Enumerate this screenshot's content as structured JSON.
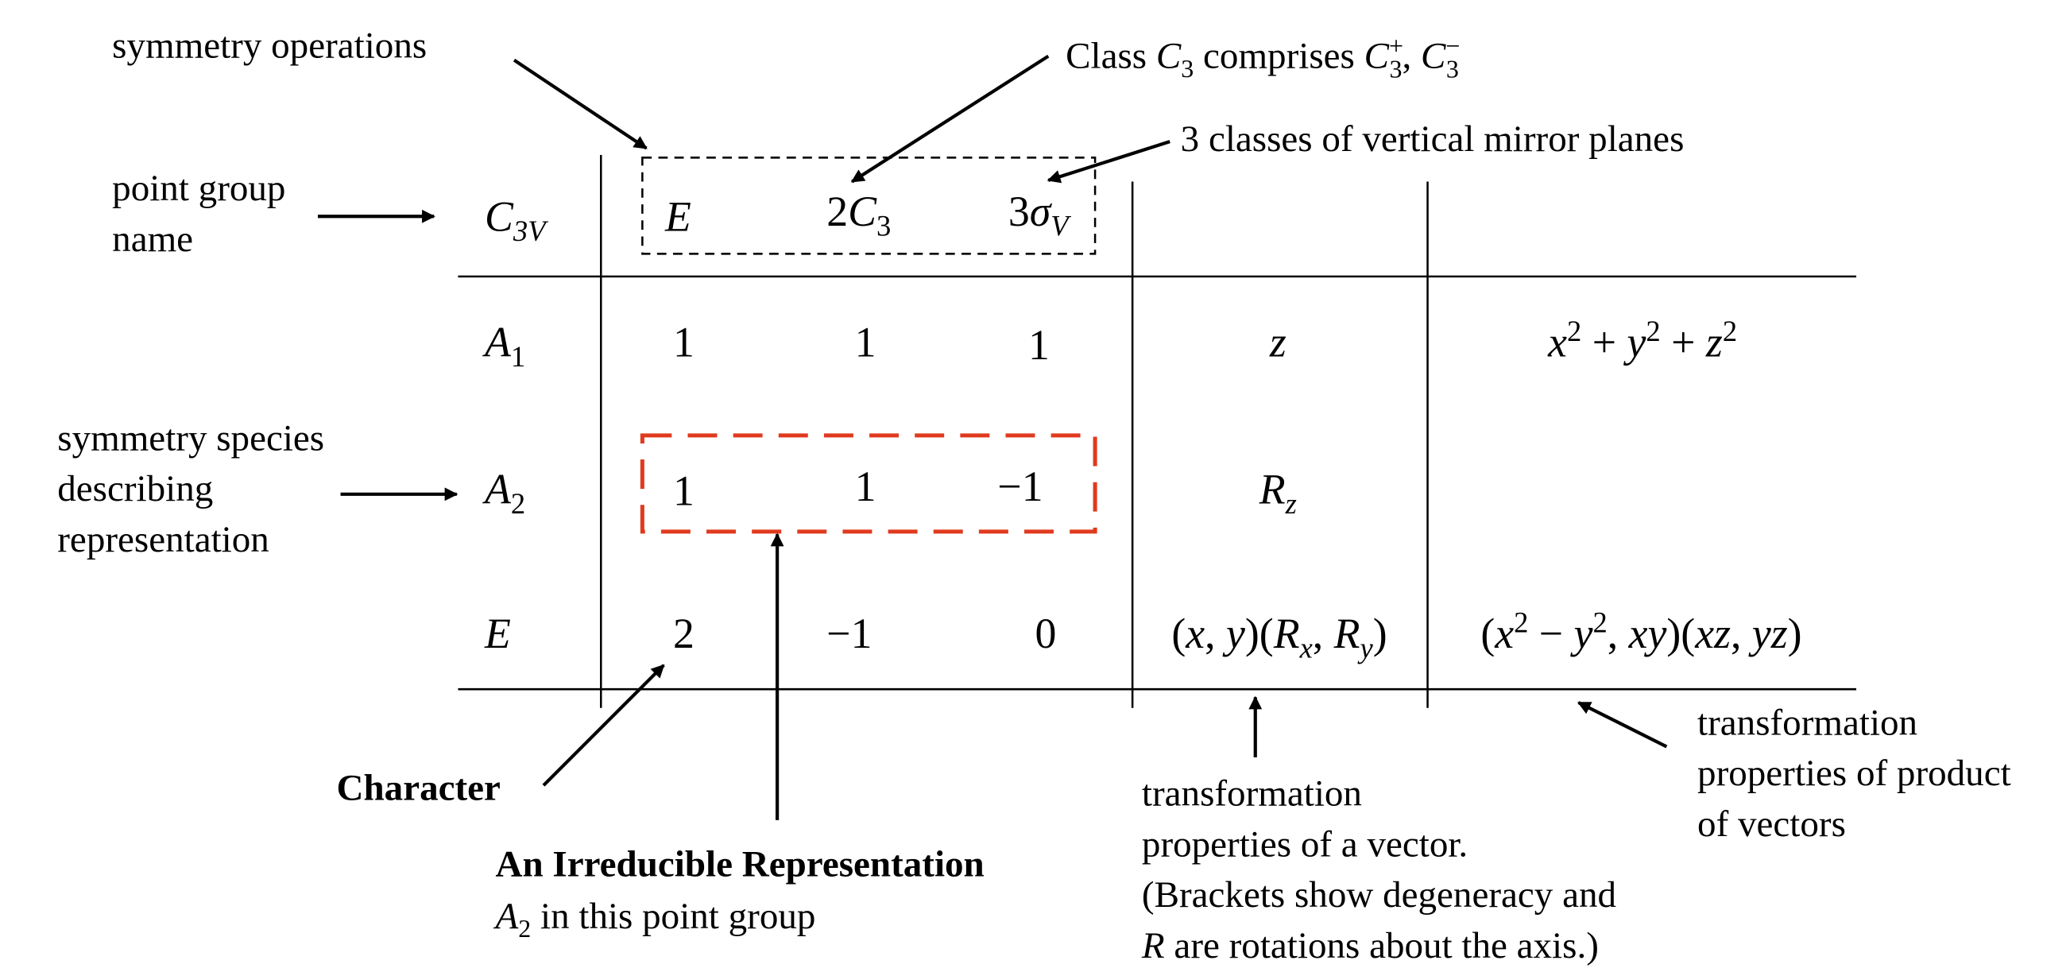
{
  "table": {
    "point_group": {
      "main": "C",
      "sub": "3V"
    },
    "operations": {
      "E": "E",
      "c3_coef": "2",
      "c3_main": "C",
      "c3_sub": "3",
      "sv_coef": "3",
      "sv_main": "σ",
      "sv_sub": "V"
    },
    "rows": [
      {
        "species": {
          "main": "A",
          "sub": "1"
        },
        "chars": [
          "1",
          "1",
          "1"
        ],
        "linear": "z",
        "quadratic": {
          "x": "x",
          "y": "y",
          "z": "z",
          "exp": "2",
          "plus": "+"
        }
      },
      {
        "species": {
          "main": "A",
          "sub": "2"
        },
        "chars": [
          "1",
          "1",
          "−1"
        ],
        "linear": {
          "main": "R",
          "sub": "z"
        }
      },
      {
        "species": {
          "main": "E",
          "sub": ""
        },
        "chars": [
          "2",
          "−1",
          "0"
        ],
        "linear": {
          "open": "(",
          "x": "x",
          "comma": ", ",
          "y": "y",
          "mid": ")(",
          "R": "R",
          "rx": "x",
          "ry": "y",
          "close": ")"
        },
        "quadratic": {
          "open": "(",
          "x": "x",
          "exp": "2",
          "minus": " − ",
          "y": "y",
          "comma": ", ",
          "xy": "xy",
          "mid": ")(",
          "xz": "xz",
          "yz": "yz",
          "close": ")"
        }
      }
    ]
  },
  "annotations": {
    "symmetry_operations": "symmetry operations",
    "class_c3": {
      "text": "Class ",
      "C": "C",
      "sub": "3",
      "comprises": " comprises ",
      "plus": "+",
      "minus": "−",
      "sep": ", "
    },
    "mirror_planes": "3 classes of vertical mirror planes",
    "point_group_name": [
      "point group",
      "name"
    ],
    "symmetry_species": [
      "symmetry species",
      "describing",
      "representation"
    ],
    "character": "Character",
    "irrep_title": "An Irreducible Representation",
    "irrep_sub": {
      "A": "A",
      "sub": "2",
      "rest": " in this point group"
    },
    "vector_props": [
      "transformation",
      "properties of a vector.",
      "(Brackets show degeneracy and",
      "R are rotations about the axis.)"
    ],
    "product_props": [
      "transformation",
      "properties of product",
      "of vectors"
    ]
  },
  "colors": {
    "ink": "#000000",
    "highlight": "#e03a1e"
  }
}
